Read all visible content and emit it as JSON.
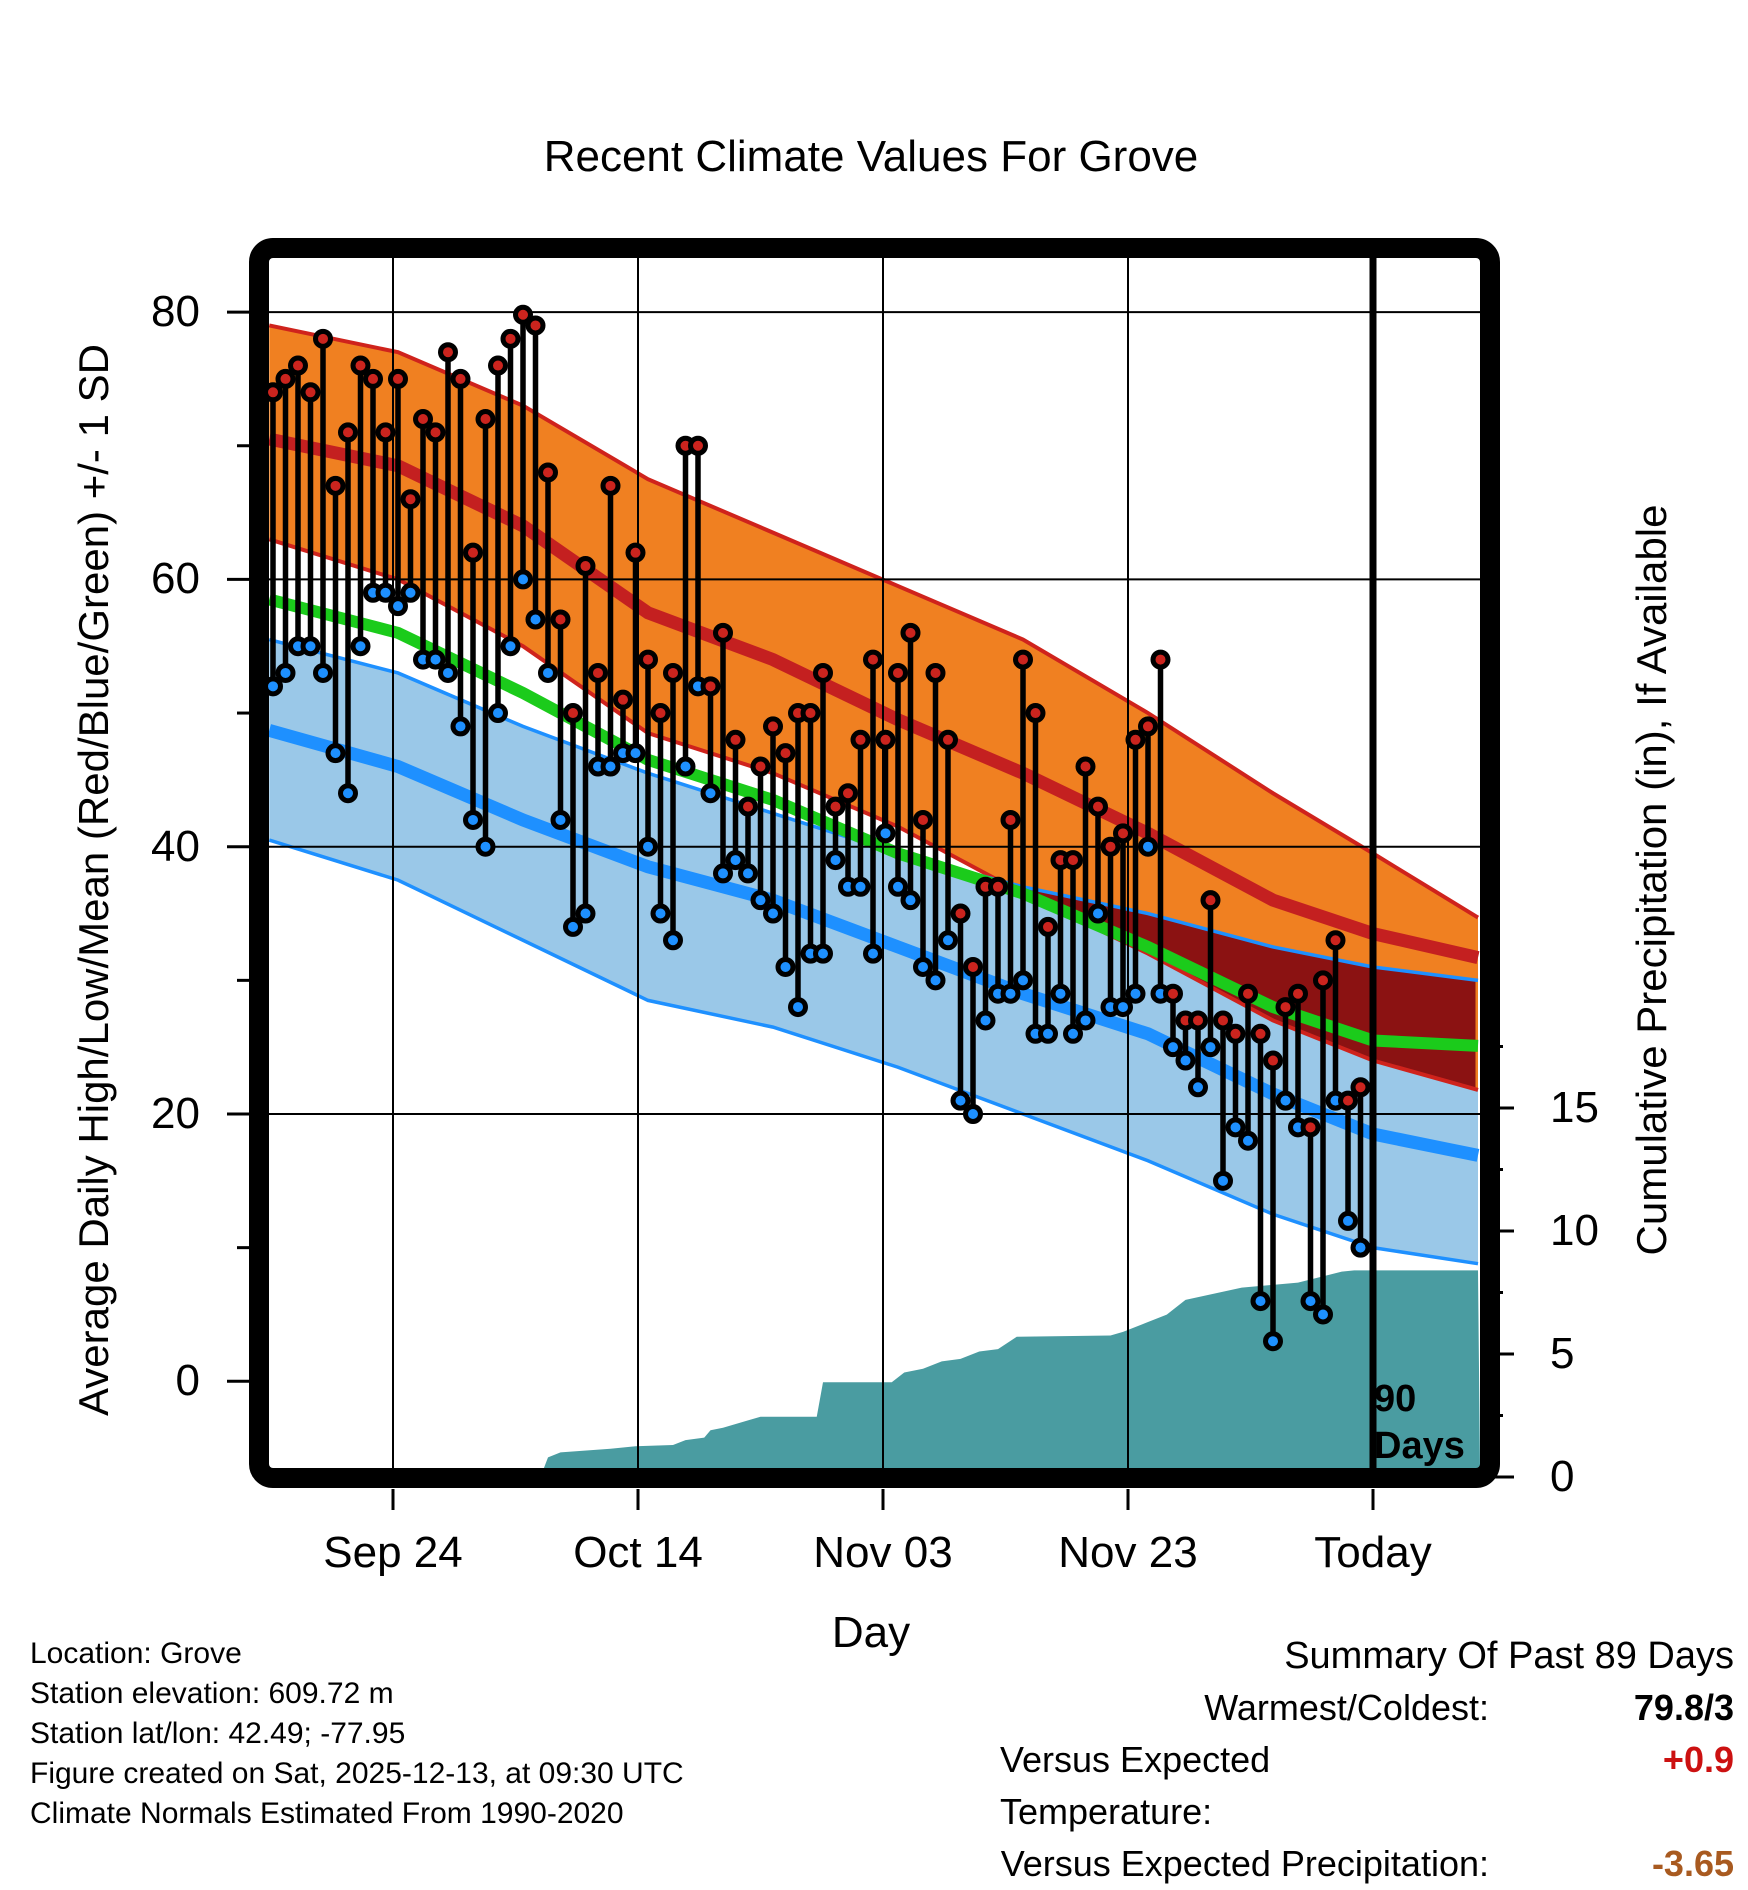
{
  "title": "Recent Climate Values For Grove",
  "axes": {
    "x": {
      "label": "Day"
    },
    "left": {
      "label": "Average Daily High/Low/Mean (Red/Blue/Green) +/- 1 SD"
    },
    "right": {
      "label": "Cumulative Precipitation (in), If Available"
    }
  },
  "annotations": {
    "period_lines": [
      "90",
      "Days"
    ]
  },
  "footer": {
    "lines": [
      "Location: Grove",
      "Station elevation: 609.72 m",
      "Station lat/lon: 42.49; -77.95",
      "Figure created on Sat, 2025-12-13, at 09:30 UTC",
      "Climate Normals Estimated From 1990-2020"
    ]
  },
  "summary": {
    "header": "Summary Of Past 89 Days",
    "rows": [
      {
        "label": "Warmest/Coldest:",
        "value": "79.8/3",
        "color": "#000000"
      },
      {
        "label": "Versus Expected Temperature:",
        "value": "+0.9",
        "color": "#cc1111"
      },
      {
        "label": "Versus Expected Precipitation:",
        "value": "-3.65",
        "color": "#a85a20"
      }
    ]
  },
  "chart_data": {
    "type": "composite",
    "title": "Recent Climate Values For Grove",
    "xlabel": "Day",
    "ylabel_left": "Average Daily High/Low/Mean (Red/Blue/Green) +/- 1 SD",
    "ylabel_right": "Cumulative Precipitation (in), If Available",
    "x_axis": {
      "n_days": 89,
      "tick_labels": [
        "Sep 24",
        "Oct 14",
        "Nov 03",
        "Nov 23",
        "Today"
      ],
      "tick_days": [
        9.6,
        29.2,
        48.8,
        68.4,
        88
      ],
      "today_day": 88,
      "grid": true
    },
    "y_left_axis": {
      "major_ticks": [
        80,
        60,
        40,
        20,
        0
      ],
      "minor_ticks": [
        70,
        50,
        30,
        10
      ],
      "range": [
        -6.4,
        84
      ],
      "grid_at": [
        80,
        60,
        40,
        20
      ]
    },
    "y_right_axis": {
      "major_ticks": [
        15,
        10,
        5,
        0
      ],
      "minor_ticks": [
        17.5,
        12.5,
        7.5,
        2.5
      ],
      "range": [
        0,
        21.3
      ]
    },
    "normals": {
      "sample_days": [
        -0.3,
        10,
        20,
        30,
        40,
        50,
        60,
        70,
        80,
        88,
        96.4
      ],
      "high_plus_sd": [
        79,
        77,
        73,
        67.5,
        63.5,
        59.5,
        55.5,
        50,
        44,
        39.5,
        34.7
      ],
      "high": [
        70.5,
        68.5,
        64,
        57.5,
        54,
        49.5,
        45.5,
        41,
        36,
        33.5,
        31.7
      ],
      "high_minus_sd": [
        63,
        60,
        55,
        48.5,
        45.5,
        41.5,
        36.5,
        32,
        27,
        24,
        21.8
      ],
      "low_plus_sd": [
        55.5,
        53,
        49,
        45.5,
        42.5,
        39.5,
        37,
        35,
        32.5,
        31,
        30
      ],
      "low": [
        48.7,
        46,
        42,
        38.5,
        36,
        32.5,
        29,
        26,
        21.5,
        18.5,
        16.9
      ],
      "low_minus_sd": [
        40.5,
        37.5,
        33,
        28.5,
        26.5,
        23.5,
        20,
        16.5,
        12.5,
        10,
        8.8
      ],
      "mean": [
        58.5,
        56,
        51.5,
        46.5,
        43.5,
        39.5,
        36.5,
        32.5,
        28,
        25.5,
        25.1
      ]
    },
    "daily": {
      "note": "day 0 = 89 days ago, day 88 = Today; temperatures in deg F",
      "highs": [
        74,
        75,
        76,
        74,
        78,
        67,
        71,
        76,
        75,
        71,
        75,
        66,
        72,
        71,
        77,
        75,
        62,
        72,
        76,
        78,
        79.8,
        79,
        68,
        57,
        50,
        61,
        53,
        67,
        51,
        62,
        54,
        50,
        53,
        70,
        70,
        52,
        56,
        48,
        43,
        46,
        49,
        47,
        50,
        50,
        53,
        43,
        44,
        48,
        54,
        48,
        53,
        56,
        42,
        53,
        48,
        35,
        31,
        37,
        37,
        42,
        54,
        50,
        34,
        39,
        39,
        46,
        43,
        40,
        41,
        48,
        49,
        54,
        29,
        27,
        27,
        36,
        27,
        26,
        29,
        26,
        24,
        28,
        29,
        19,
        30,
        33,
        21,
        22,
        null
      ],
      "lows": [
        52,
        53,
        55,
        55,
        53,
        47,
        44,
        55,
        59,
        59,
        58,
        59,
        54,
        54,
        53,
        49,
        42,
        40,
        50,
        55,
        60,
        57,
        53,
        42,
        34,
        35,
        46,
        46,
        47,
        47,
        40,
        35,
        33,
        46,
        52,
        44,
        38,
        39,
        38,
        36,
        35,
        31,
        28,
        32,
        32,
        39,
        37,
        37,
        32,
        41,
        37,
        36,
        31,
        30,
        33,
        21,
        20,
        27,
        29,
        29,
        30,
        26,
        26,
        29,
        26,
        27,
        35,
        28,
        28,
        29,
        40,
        29,
        25,
        24,
        22,
        25,
        15,
        19,
        18,
        6,
        3,
        21,
        19,
        6,
        5,
        21,
        12,
        10,
        null
      ],
      "warmest": 79.8,
      "coldest": 3
    },
    "precip_cumulative": {
      "units": "in",
      "points": [
        [
          21.4,
          0
        ],
        [
          22,
          0.8
        ],
        [
          23,
          1.0
        ],
        [
          27,
          1.15
        ],
        [
          29,
          1.25
        ],
        [
          32,
          1.3
        ],
        [
          33,
          1.5
        ],
        [
          34.5,
          1.6
        ],
        [
          35,
          1.9
        ],
        [
          36,
          2.0
        ],
        [
          38,
          2.3
        ],
        [
          39,
          2.45
        ],
        [
          43.5,
          2.45
        ],
        [
          44,
          3.85
        ],
        [
          49.5,
          3.85
        ],
        [
          50.5,
          4.25
        ],
        [
          52,
          4.4
        ],
        [
          53.5,
          4.7
        ],
        [
          55,
          4.8
        ],
        [
          56.5,
          5.1
        ],
        [
          58,
          5.2
        ],
        [
          59.5,
          5.7
        ],
        [
          67,
          5.75
        ],
        [
          68,
          5.9
        ],
        [
          70,
          6.3
        ],
        [
          71.5,
          6.6
        ],
        [
          73,
          7.2
        ],
        [
          77.5,
          7.7
        ],
        [
          82,
          7.9
        ],
        [
          85.5,
          8.35
        ],
        [
          86.5,
          8.4
        ],
        [
          96.4,
          8.4
        ]
      ]
    },
    "colors": {
      "high_band": "#F08021",
      "band_edge_red": "#CF231C",
      "high_line": "#C42020",
      "overlap_band": "#8B1212",
      "mean_line": "#1BCB1B",
      "low_band": "#9AC8E8",
      "low_line": "#1E90FF",
      "high_dot": "#CB241E",
      "low_dot": "#1E90FF",
      "precip_fill": "#4A9CA1",
      "grid": "#000000"
    }
  }
}
